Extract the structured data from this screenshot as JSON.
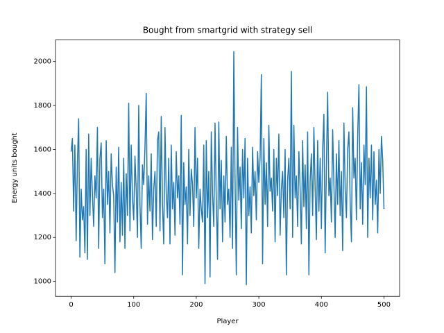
{
  "chart_data": {
    "type": "line",
    "title": "Bought from smartgrid with strategy sell",
    "x_label": "Player",
    "y_label": "Energy units bought",
    "color": "#1f77b4",
    "x": [
      0,
      2,
      4,
      6,
      8,
      10,
      12,
      14,
      16,
      18,
      20,
      22,
      24,
      26,
      28,
      30,
      32,
      34,
      36,
      38,
      40,
      42,
      44,
      46,
      48,
      50,
      52,
      54,
      56,
      58,
      60,
      62,
      64,
      66,
      68,
      70,
      72,
      74,
      76,
      78,
      80,
      82,
      84,
      86,
      88,
      90,
      92,
      94,
      96,
      98,
      100,
      102,
      104,
      106,
      108,
      110,
      112,
      114,
      116,
      118,
      120,
      122,
      124,
      126,
      128,
      130,
      132,
      134,
      136,
      138,
      140,
      142,
      144,
      146,
      148,
      150,
      152,
      154,
      156,
      158,
      160,
      162,
      164,
      166,
      168,
      170,
      172,
      174,
      176,
      178,
      180,
      182,
      184,
      186,
      188,
      190,
      192,
      194,
      196,
      198,
      200,
      202,
      204,
      206,
      208,
      210,
      212,
      214,
      216,
      218,
      220,
      222,
      224,
      226,
      228,
      230,
      232,
      234,
      236,
      238,
      240,
      242,
      244,
      246,
      248,
      250,
      252,
      254,
      256,
      258,
      260,
      262,
      264,
      266,
      268,
      270,
      272,
      274,
      276,
      278,
      280,
      282,
      284,
      286,
      288,
      290,
      292,
      294,
      296,
      298,
      300,
      302,
      304,
      306,
      308,
      310,
      312,
      314,
      316,
      318,
      320,
      322,
      324,
      326,
      328,
      330,
      332,
      334,
      336,
      338,
      340,
      342,
      344,
      346,
      348,
      350,
      352,
      354,
      356,
      358,
      360,
      362,
      364,
      366,
      368,
      370,
      372,
      374,
      376,
      378,
      380,
      382,
      384,
      386,
      388,
      390,
      392,
      394,
      396,
      398,
      400,
      402,
      404,
      406,
      408,
      410,
      412,
      414,
      416,
      418,
      420,
      422,
      424,
      426,
      428,
      430,
      432,
      434,
      436,
      438,
      440,
      442,
      444,
      446,
      448,
      450,
      452,
      454,
      456,
      458,
      460,
      462,
      464,
      466,
      468,
      470,
      472,
      474,
      476,
      478,
      480,
      482,
      484,
      486,
      488,
      490,
      492,
      494,
      496,
      498,
      500
    ],
    "values": [
      1590,
      1650,
      1320,
      1620,
      1185,
      1540,
      1740,
      1110,
      1420,
      1280,
      1340,
      1130,
      1600,
      1100,
      1670,
      1300,
      1560,
      1400,
      1250,
      1480,
      1380,
      1700,
      1150,
      1560,
      1630,
      1290,
      1420,
      1080,
      1640,
      1350,
      1500,
      1220,
      1580,
      1440,
      1390,
      1040,
      1520,
      1270,
      1610,
      1180,
      1450,
      1210,
      1560,
      1150,
      1490,
      1300,
      1810,
      1230,
      1620,
      1380,
      1280,
      1570,
      1420,
      1200,
      1800,
      1350,
      1150,
      1530,
      1440,
      1610,
      1855,
      1260,
      1480,
      1320,
      1580,
      1190,
      1420,
      1500,
      1250,
      1640,
      1680,
      1230,
      1750,
      1350,
      1170,
      1700,
      1400,
      1290,
      1560,
      1170,
      1620,
      1330,
      1450,
      1210,
      1590,
      1380,
      1480,
      1260,
      1755,
      1030,
      1540,
      1350,
      1430,
      1170,
      1600,
      1300,
      1510,
      1440,
      1250,
      1700,
      1380,
      1560,
      1150,
      1420,
      1330,
      1270,
      1620,
      990,
      1640,
      1290,
      1500,
      1020,
      1680,
      1400,
      1250,
      1720,
      1370,
      1100,
      1725,
      1330,
      1550,
      1180,
      1480,
      1270,
      1660,
      1350,
      1420,
      1200,
      1610,
      1150,
      2045,
      1460,
      1030,
      1700,
      1370,
      1520,
      1240,
      1600,
      1380,
      1650,
      985,
      1560,
      1300,
      1430,
      1220,
      1610,
      1390,
      1500,
      1280,
      1590,
      1450,
      1560,
      1940,
      1080,
      1650,
      1350,
      1540,
      1250,
      1710,
      1410,
      1470,
      1320,
      1600,
      1180,
      1560,
      1390,
      1670,
      1210,
      1420,
      1500,
      1290,
      1600,
      1030,
      1460,
      1560,
      1330,
      1955,
      1200,
      1710,
      1380,
      1480,
      1250,
      1590,
      1420,
      1170,
      1640,
      1340,
      1530,
      1240,
      1680,
      1030,
      1460,
      1580,
      1300,
      1700,
      1420,
      1190,
      1640,
      1320,
      1560,
      1240,
      1600,
      1760,
      1130,
      1520,
      1860,
      1390,
      1470,
      1270,
      1690,
      1440,
      1200,
      1580,
      1350,
      1640,
      1300,
      1500,
      1140,
      1720,
      1420,
      1290,
      1600,
      1680,
      1360,
      1180,
      1790,
      1470,
      1560,
      1280,
      1660,
      1895,
      1330,
      1540,
      1260,
      1620,
      1440,
      1885,
      1200,
      1560,
      1380,
      1620,
      1280,
      1590,
      1350,
      1460,
      1220,
      1600,
      1400,
      1660,
      1550,
      1330
    ],
    "xlim": [
      -25,
      525
    ],
    "ylim": [
      932,
      2098
    ],
    "xticks": [
      0,
      100,
      200,
      300,
      400,
      500
    ],
    "yticks": [
      1000,
      1200,
      1400,
      1600,
      1800,
      2000
    ]
  }
}
